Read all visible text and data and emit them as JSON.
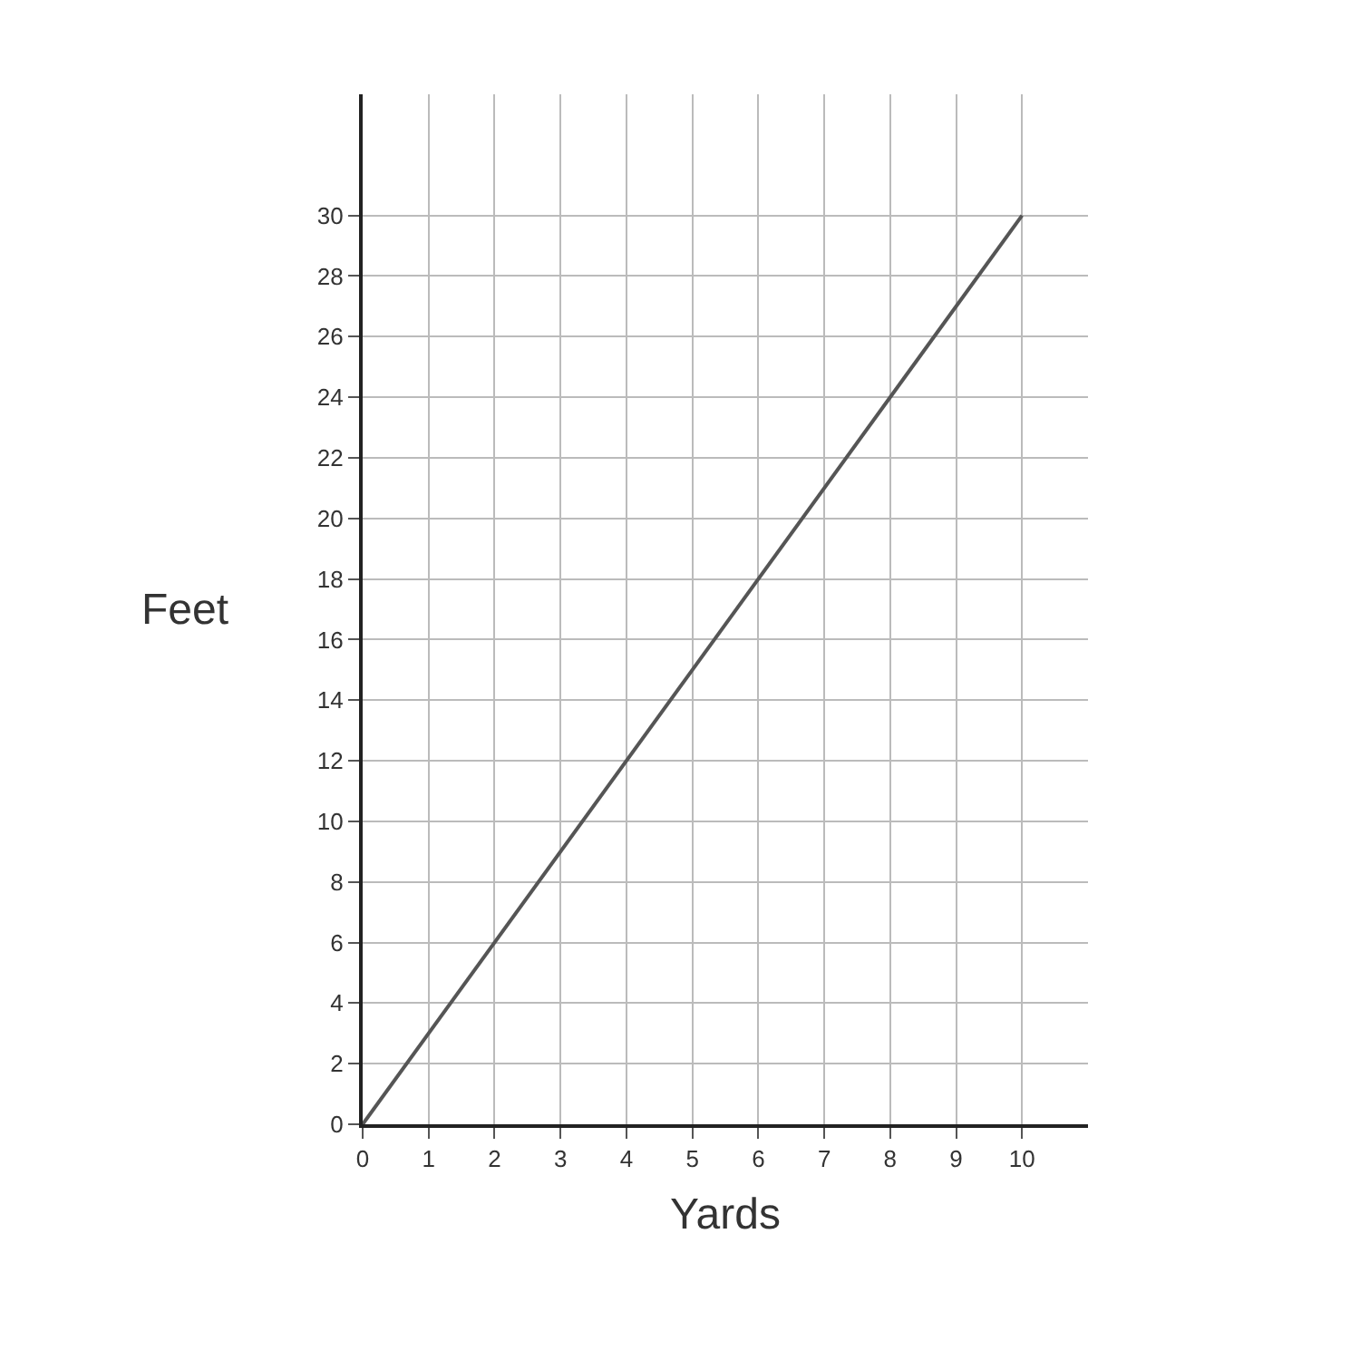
{
  "chart_data": {
    "type": "line",
    "xlabel": "Yards",
    "ylabel": "Feet",
    "x": [
      0,
      10
    ],
    "series": [
      {
        "color": "#555555",
        "values": [
          0,
          30
        ]
      }
    ],
    "xlim": [
      0,
      11
    ],
    "ylim": [
      0,
      34
    ],
    "xticks": [
      0,
      1,
      2,
      3,
      4,
      5,
      6,
      7,
      8,
      9,
      10
    ],
    "yticks": [
      0,
      2,
      4,
      6,
      8,
      10,
      12,
      14,
      16,
      18,
      20,
      22,
      24,
      26,
      28,
      30
    ],
    "grid": true,
    "marker": "none",
    "line_style": "solid"
  }
}
